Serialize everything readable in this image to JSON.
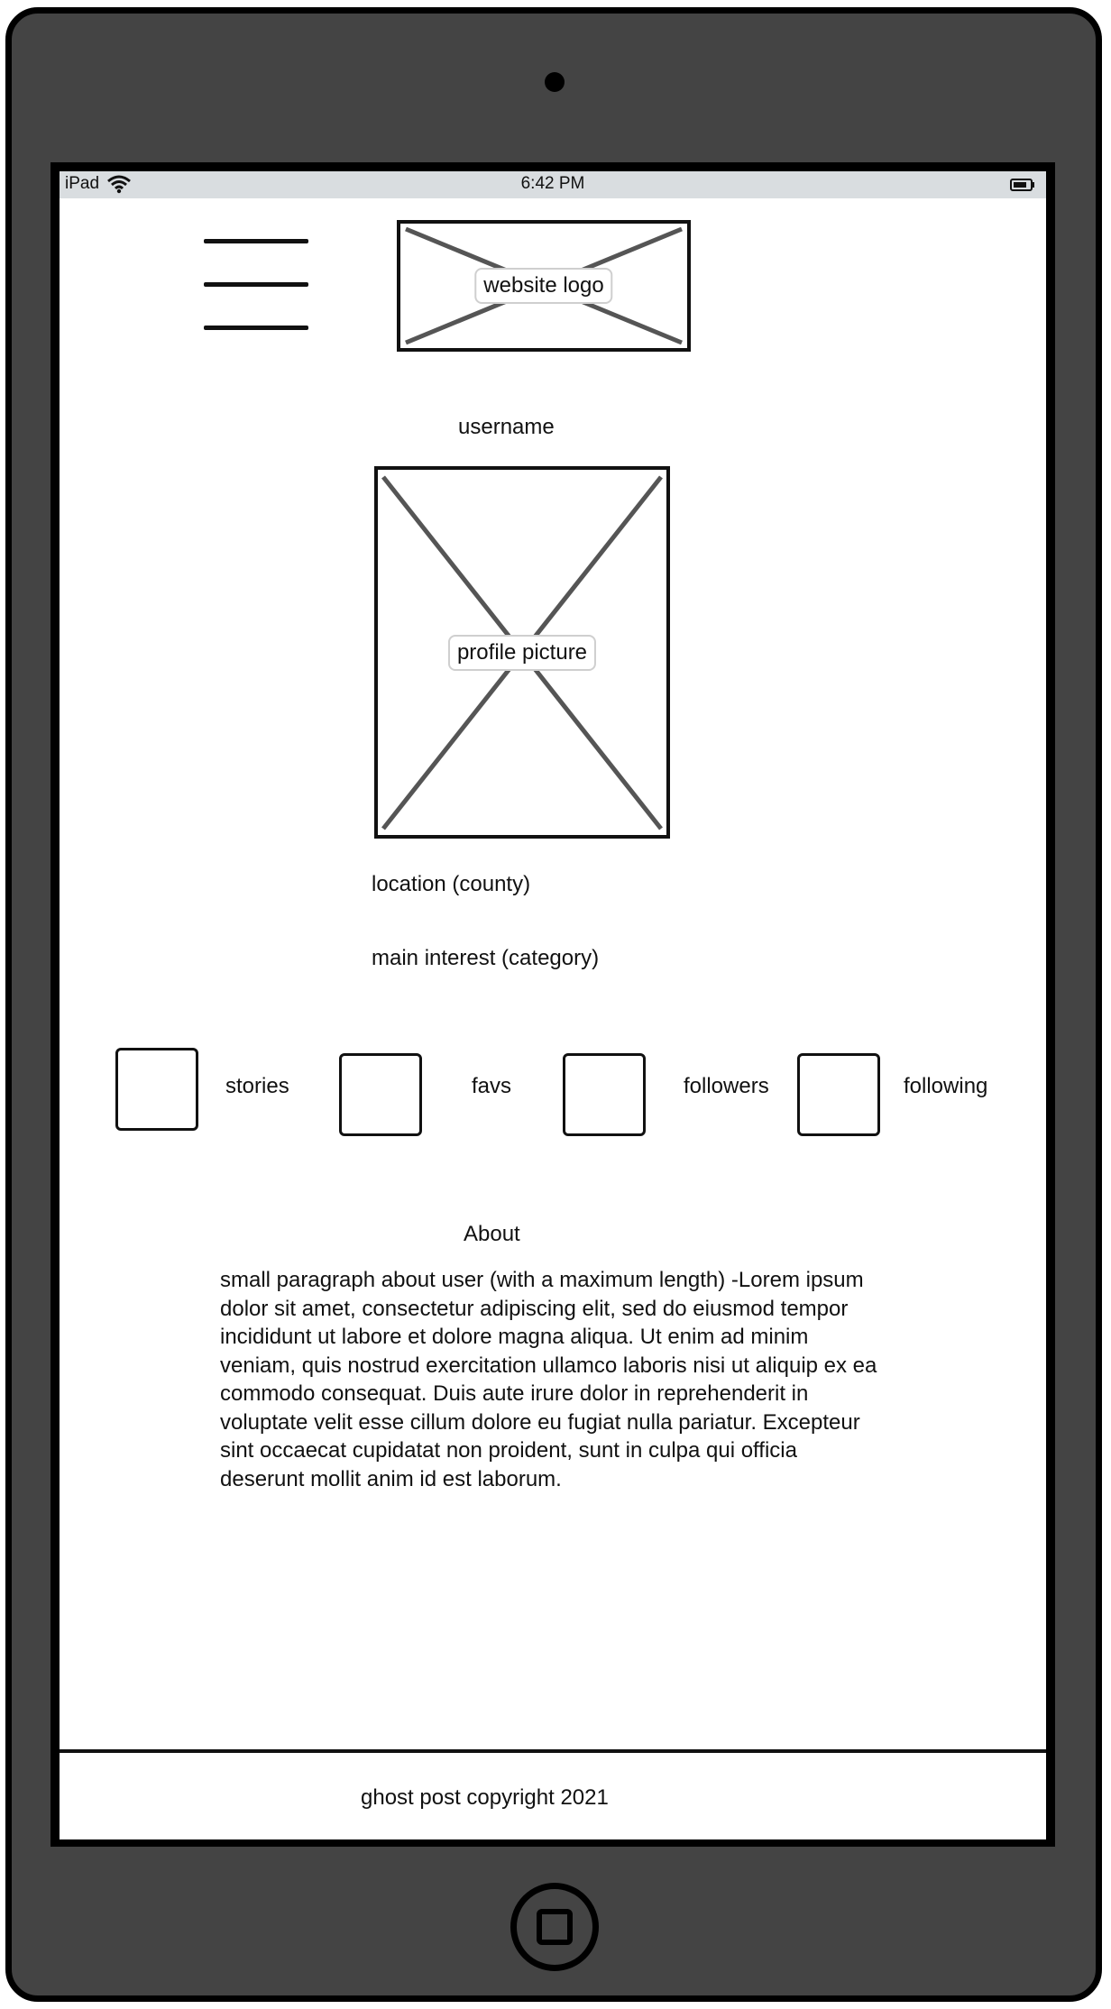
{
  "status_bar": {
    "device": "iPad",
    "time": "6:42 PM"
  },
  "header": {
    "logo_label": "website logo"
  },
  "profile": {
    "username": "username",
    "picture_label": "profile picture",
    "location": "location (county)",
    "main_interest": "main interest (category)"
  },
  "stats": [
    {
      "label": "stories"
    },
    {
      "label": "favs"
    },
    {
      "label": "followers"
    },
    {
      "label": "following"
    }
  ],
  "about": {
    "heading": "About",
    "body": "small paragraph about user (with a maximum length) -Lorem ipsum dolor sit amet, consectetur adipiscing elit, sed do eiusmod tempor incididunt ut labore et dolore magna aliqua. Ut enim ad minim veniam, quis nostrud exercitation ullamco laboris nisi ut aliquip ex ea commodo consequat. Duis aute irure dolor in reprehenderit in voluptate velit esse cillum dolore eu fugiat nulla pariatur. Excepteur sint occaecat cupidatat non proident, sunt in culpa qui officia deserunt mollit anim id est laborum."
  },
  "footer": {
    "copyright": "ghost post copyright 2021"
  },
  "icons": [
    "wifi-icon",
    "battery-icon",
    "hamburger-menu-icon",
    "camera-icon",
    "home-button-icon"
  ],
  "colors": {
    "device_body": "#444444",
    "status_bar": "#d9dde0",
    "screen": "#ffffff"
  }
}
